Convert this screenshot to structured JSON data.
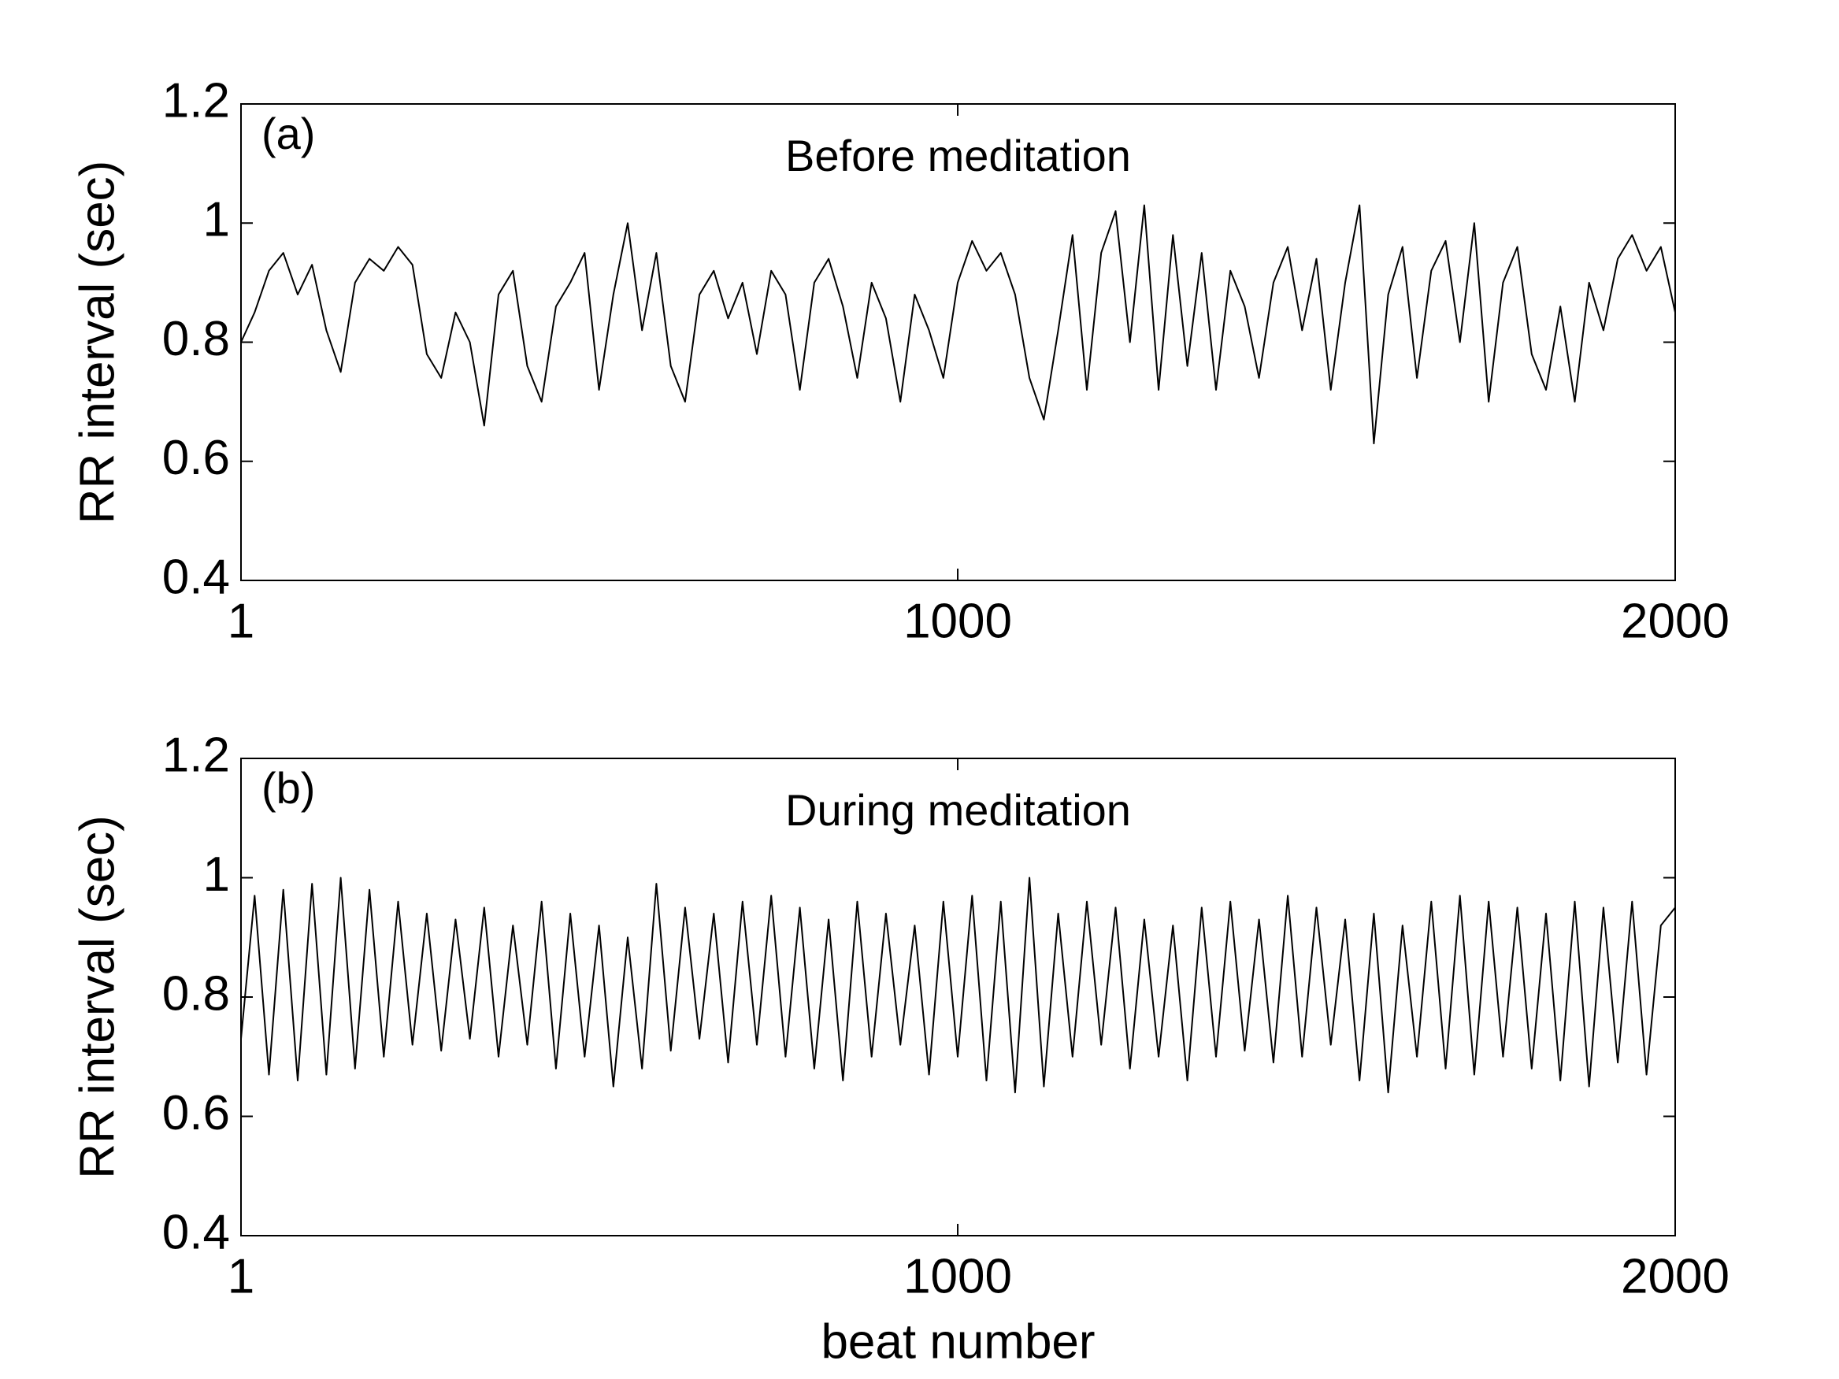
{
  "chart_data": [
    {
      "type": "line",
      "annotation": "(a)",
      "title": "Before meditation",
      "y_label": "RR interval (sec)",
      "x": [
        1,
        20,
        40,
        60,
        80,
        100,
        120,
        140,
        160,
        180,
        200,
        220,
        240,
        260,
        280,
        300,
        320,
        340,
        360,
        380,
        400,
        420,
        440,
        460,
        480,
        500,
        520,
        540,
        560,
        580,
        600,
        620,
        640,
        660,
        680,
        700,
        720,
        740,
        760,
        780,
        800,
        820,
        840,
        860,
        880,
        900,
        920,
        940,
        960,
        980,
        1000,
        1020,
        1040,
        1060,
        1080,
        1100,
        1120,
        1140,
        1160,
        1180,
        1200,
        1220,
        1240,
        1260,
        1280,
        1300,
        1320,
        1340,
        1360,
        1380,
        1400,
        1420,
        1440,
        1460,
        1480,
        1500,
        1520,
        1540,
        1560,
        1580,
        1600,
        1620,
        1640,
        1660,
        1680,
        1700,
        1720,
        1740,
        1760,
        1780,
        1800,
        1820,
        1840,
        1860,
        1880,
        1900,
        1920,
        1940,
        1960,
        1980,
        2000
      ],
      "series": [
        {
          "color": "#000000",
          "values": [
            0.8,
            0.85,
            0.92,
            0.95,
            0.88,
            0.93,
            0.82,
            0.75,
            0.9,
            0.94,
            0.92,
            0.96,
            0.93,
            0.78,
            0.74,
            0.85,
            0.8,
            0.66,
            0.88,
            0.92,
            0.76,
            0.7,
            0.86,
            0.9,
            0.95,
            0.72,
            0.88,
            1.0,
            0.82,
            0.95,
            0.76,
            0.7,
            0.88,
            0.92,
            0.84,
            0.9,
            0.78,
            0.92,
            0.88,
            0.72,
            0.9,
            0.94,
            0.86,
            0.74,
            0.9,
            0.84,
            0.7,
            0.88,
            0.82,
            0.74,
            0.9,
            0.97,
            0.92,
            0.95,
            0.88,
            0.74,
            0.67,
            0.82,
            0.98,
            0.72,
            0.95,
            1.02,
            0.8,
            1.03,
            0.72,
            0.98,
            0.76,
            0.95,
            0.72,
            0.92,
            0.86,
            0.74,
            0.9,
            0.96,
            0.82,
            0.94,
            0.72,
            0.9,
            1.03,
            0.63,
            0.88,
            0.96,
            0.74,
            0.92,
            0.97,
            0.8,
            1.0,
            0.7,
            0.9,
            0.96,
            0.78,
            0.72,
            0.86,
            0.7,
            0.9,
            0.82,
            0.94,
            0.98,
            0.92,
            0.96,
            0.85
          ]
        }
      ],
      "xlim": [
        1,
        2000
      ],
      "ylim": [
        0.4,
        1.2
      ],
      "xticks": [
        1,
        1000,
        2000
      ],
      "yticks": [
        0.4,
        0.6,
        0.8,
        1,
        1.2
      ]
    },
    {
      "type": "line",
      "annotation": "(b)",
      "title": "During meditation",
      "y_label": "RR interval (sec)",
      "x_label": "beat number",
      "x": [
        1,
        20,
        40,
        60,
        80,
        100,
        120,
        140,
        160,
        180,
        200,
        220,
        240,
        260,
        280,
        300,
        320,
        340,
        360,
        380,
        400,
        420,
        440,
        460,
        480,
        500,
        520,
        540,
        560,
        580,
        600,
        620,
        640,
        660,
        680,
        700,
        720,
        740,
        760,
        780,
        800,
        820,
        840,
        860,
        880,
        900,
        920,
        940,
        960,
        980,
        1000,
        1020,
        1040,
        1060,
        1080,
        1100,
        1120,
        1140,
        1160,
        1180,
        1200,
        1220,
        1240,
        1260,
        1280,
        1300,
        1320,
        1340,
        1360,
        1380,
        1400,
        1420,
        1440,
        1460,
        1480,
        1500,
        1520,
        1540,
        1560,
        1580,
        1600,
        1620,
        1640,
        1660,
        1680,
        1700,
        1720,
        1740,
        1760,
        1780,
        1800,
        1820,
        1840,
        1860,
        1880,
        1900,
        1920,
        1940,
        1960,
        1980,
        2000
      ],
      "series": [
        {
          "color": "#000000",
          "values": [
            0.73,
            0.97,
            0.67,
            0.98,
            0.66,
            0.99,
            0.67,
            1.0,
            0.68,
            0.98,
            0.7,
            0.96,
            0.72,
            0.94,
            0.71,
            0.93,
            0.73,
            0.95,
            0.7,
            0.92,
            0.72,
            0.96,
            0.68,
            0.94,
            0.7,
            0.92,
            0.65,
            0.9,
            0.68,
            0.99,
            0.71,
            0.95,
            0.73,
            0.94,
            0.69,
            0.96,
            0.72,
            0.97,
            0.7,
            0.95,
            0.68,
            0.93,
            0.66,
            0.96,
            0.7,
            0.94,
            0.72,
            0.92,
            0.67,
            0.96,
            0.7,
            0.97,
            0.66,
            0.96,
            0.64,
            1.0,
            0.65,
            0.94,
            0.7,
            0.96,
            0.72,
            0.95,
            0.68,
            0.93,
            0.7,
            0.92,
            0.66,
            0.95,
            0.7,
            0.96,
            0.71,
            0.93,
            0.69,
            0.97,
            0.7,
            0.95,
            0.72,
            0.93,
            0.66,
            0.94,
            0.64,
            0.92,
            0.7,
            0.96,
            0.68,
            0.97,
            0.67,
            0.96,
            0.7,
            0.95,
            0.68,
            0.94,
            0.66,
            0.96,
            0.65,
            0.95,
            0.69,
            0.96,
            0.67,
            0.92,
            0.95
          ]
        }
      ],
      "xlim": [
        1,
        2000
      ],
      "ylim": [
        0.4,
        1.2
      ],
      "xticks": [
        1,
        1000,
        2000
      ],
      "yticks": [
        0.4,
        0.6,
        0.8,
        1,
        1.2
      ]
    }
  ]
}
